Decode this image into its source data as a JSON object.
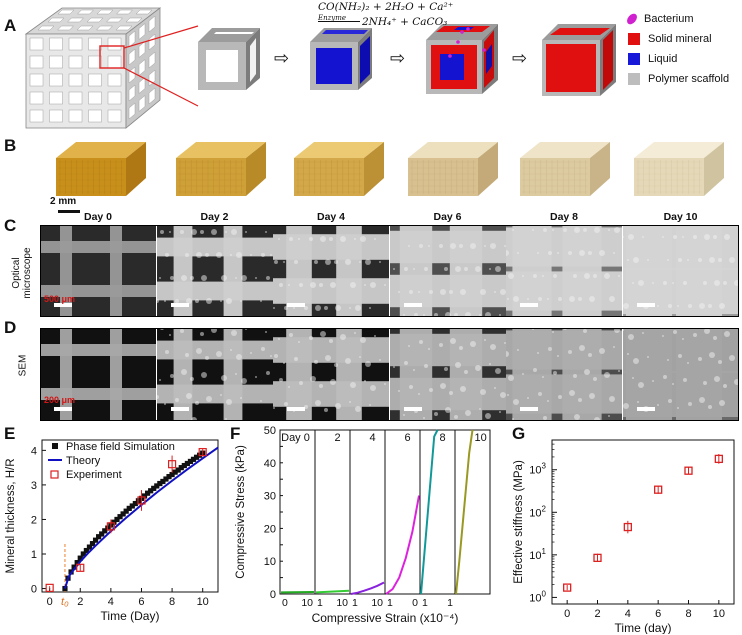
{
  "panels": {
    "a": "A",
    "b": "B",
    "c": "C",
    "d": "D",
    "e": "E",
    "f": "F",
    "g": "G"
  },
  "reaction": {
    "line1": "CO(NH₂)₂ + 2H₂O + Ca²⁺",
    "enzyme": "Enzyme",
    "line2": "2NH₄⁺ + CaCO₃"
  },
  "legend": [
    {
      "label": "Bacterium",
      "color": "#d020d0"
    },
    {
      "label": "Solid mineral",
      "color": "#e01010"
    },
    {
      "label": "Liquid",
      "color": "#1818d8"
    },
    {
      "label": "Polymer scaffold",
      "color": "#bdbdbd"
    }
  ],
  "scale_b": "2 mm",
  "days": [
    "Day 0",
    "Day 2",
    "Day 4",
    "Day 6",
    "Day 8",
    "Day 10"
  ],
  "row_labels": {
    "optical": [
      "Optical",
      "microscope"
    ],
    "sem": "SEM"
  },
  "scale_c": "500 μm",
  "scale_d": "200 μm",
  "colors": {
    "mineral": "#e01010",
    "liquid": "#1818d8",
    "scaffold": "#bdbdbd",
    "exp": "#dd2020",
    "theory": "#1010c0"
  },
  "chart_data": [
    {
      "type": "scatter",
      "panel": "E",
      "xlabel": "Time (Day)",
      "ylabel": "Mineral thickness, H/R",
      "xlim": [
        -0.5,
        11
      ],
      "ylim": [
        -0.1,
        4.3
      ],
      "xticks": [
        0,
        2,
        4,
        6,
        8,
        10
      ],
      "yticks": [
        0,
        1,
        2,
        3,
        4
      ],
      "t0_label": "t₀",
      "series": [
        {
          "name": "Phase field Simulation",
          "kind": "points",
          "x": [
            1.0,
            1.2,
            1.4,
            1.6,
            1.8,
            2.0,
            2.2,
            2.4,
            2.6,
            2.8,
            3.0,
            3.2,
            3.4,
            3.6,
            3.8,
            4.0,
            4.2,
            4.4,
            4.6,
            4.8,
            5.0,
            5.2,
            5.4,
            5.6,
            5.8,
            6.0,
            6.2,
            6.4,
            6.6,
            6.8,
            7.0,
            7.2,
            7.4,
            7.6,
            7.8,
            8.0,
            8.2,
            8.4,
            8.6,
            8.8,
            9.0,
            9.2,
            9.4,
            9.6,
            9.8,
            10.0
          ],
          "y": [
            0.0,
            0.3,
            0.48,
            0.62,
            0.75,
            0.88,
            1.0,
            1.1,
            1.2,
            1.3,
            1.4,
            1.5,
            1.58,
            1.67,
            1.75,
            1.84,
            1.92,
            2.0,
            2.08,
            2.16,
            2.24,
            2.32,
            2.39,
            2.46,
            2.54,
            2.61,
            2.68,
            2.76,
            2.83,
            2.9,
            2.97,
            3.04,
            3.1,
            3.17,
            3.24,
            3.3,
            3.37,
            3.43,
            3.5,
            3.56,
            3.62,
            3.68,
            3.74,
            3.8,
            3.86,
            3.92
          ]
        },
        {
          "name": "Theory",
          "kind": "line",
          "x": [
            1.0,
            1.25,
            1.5,
            2.0,
            2.5,
            3.0,
            4.0,
            5.0,
            6.0,
            7.0,
            8.0,
            9.0,
            10.0,
            11.0
          ],
          "y": [
            0.0,
            0.35,
            0.5,
            0.78,
            1.02,
            1.24,
            1.66,
            2.05,
            2.42,
            2.78,
            3.12,
            3.45,
            3.77,
            4.08
          ]
        },
        {
          "name": "Experiment",
          "kind": "errorbar",
          "x": [
            0,
            2,
            4,
            6,
            8,
            10
          ],
          "y": [
            0.02,
            0.6,
            1.8,
            2.55,
            3.6,
            3.95
          ],
          "err": [
            0.05,
            0.1,
            0.2,
            0.3,
            0.25,
            0.1
          ]
        }
      ]
    },
    {
      "type": "line",
      "panel": "F",
      "xlabel": "Compressive Strain (x10⁻⁴)",
      "ylabel": "Compressive Stress (kPa)",
      "ylim": [
        0,
        50
      ],
      "yticks": [
        0,
        5,
        10,
        15,
        20,
        25,
        30,
        35,
        40,
        45,
        50
      ],
      "xlim": [
        0,
        10
      ],
      "sub_tick_labels": [
        "0",
        "10",
        "1",
        "10",
        "1",
        "10",
        "1",
        "0",
        "1",
        "1"
      ],
      "series": [
        {
          "name": "Day 0",
          "label": "Day 0",
          "color": "#22aa22",
          "x": [
            0,
            10
          ],
          "y": [
            0.5,
            0.6
          ]
        },
        {
          "name": "Day 2",
          "label": "2",
          "color": "#33cc33",
          "x": [
            0,
            10
          ],
          "y": [
            0.5,
            1.0
          ]
        },
        {
          "name": "Day 4",
          "label": "4",
          "color": "#8822dd",
          "x": [
            0,
            2,
            4,
            6,
            8,
            10
          ],
          "y": [
            0.0,
            0.4,
            1.0,
            1.7,
            2.5,
            3.5
          ]
        },
        {
          "name": "Day 6",
          "label": "6",
          "color": "#dd22dd",
          "x": [
            0,
            2,
            4,
            6,
            8,
            10
          ],
          "y": [
            0.0,
            1.5,
            5.0,
            11.0,
            19.0,
            30.0
          ]
        },
        {
          "name": "Day 8",
          "label": "8",
          "color": "#119999",
          "x": [
            0,
            1,
            2,
            3,
            4,
            5
          ],
          "y": [
            0.0,
            12.0,
            24.0,
            36.0,
            48.0,
            55.0
          ]
        },
        {
          "name": "Day 10",
          "label": "10",
          "color": "#999922",
          "x": [
            0,
            1,
            2,
            3,
            4,
            5
          ],
          "y": [
            0.0,
            10.0,
            21.0,
            32.0,
            43.0,
            52.0
          ]
        }
      ]
    },
    {
      "type": "scatter",
      "panel": "G",
      "xlabel": "Time (day)",
      "ylabel": "Effective stiffness (MPa)",
      "log_y": true,
      "ylim": [
        0.7,
        5000
      ],
      "xlim": [
        -1,
        11
      ],
      "xticks": [
        0,
        2,
        4,
        6,
        8,
        10
      ],
      "ytick_exponents": [
        0,
        1,
        2,
        3
      ],
      "series": [
        {
          "name": "Stiffness",
          "x": [
            0,
            2,
            4,
            6,
            8,
            10
          ],
          "y": [
            1.7,
            8.5,
            45,
            340,
            950,
            1800
          ],
          "err_factor": [
            1.15,
            1.25,
            1.4,
            1.25,
            1.2,
            1.3
          ]
        }
      ]
    }
  ]
}
